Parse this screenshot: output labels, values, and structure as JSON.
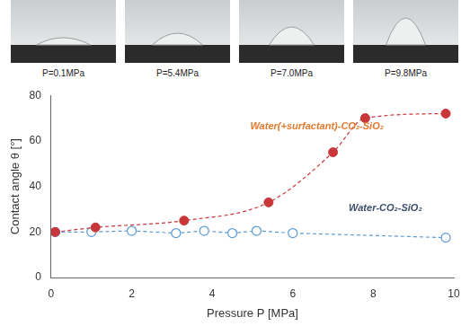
{
  "photos": [
    {
      "caption": "P=0.1MPa"
    },
    {
      "caption": "P=5.4MPa"
    },
    {
      "caption": "P=7.0MPa"
    },
    {
      "caption": "P=9.8MPa"
    }
  ],
  "chart_data": {
    "type": "scatter",
    "x_label": "Pressure P [MPa]",
    "y_label": "Contact angle θ [°]",
    "xlim": [
      0,
      10
    ],
    "xticks": [
      0,
      2,
      4,
      6,
      8,
      10
    ],
    "ylim": [
      0,
      80
    ],
    "yticks": [
      0,
      20,
      40,
      60,
      80
    ],
    "grid": false,
    "series": [
      {
        "name": "Water(+surfactant)-CO₂-SiO₂",
        "color": "#c9373a",
        "marker": "filled_circle",
        "line_style": "dashed",
        "x": [
          0.1,
          1.1,
          3.3,
          5.4,
          7.0,
          7.8,
          9.8
        ],
        "values": [
          20,
          22,
          25,
          33,
          55,
          70,
          72
        ]
      },
      {
        "name": "Water-CO₂-SiO₂",
        "color": "#5b9bd5",
        "marker": "open_circle",
        "line_style": "dashed",
        "x": [
          0.1,
          1.0,
          2.0,
          3.1,
          3.8,
          4.5,
          5.1,
          6.0,
          9.8
        ],
        "values": [
          20,
          20,
          20.5,
          19.5,
          20.5,
          19.5,
          20.5,
          19.5,
          17.5
        ]
      }
    ]
  }
}
